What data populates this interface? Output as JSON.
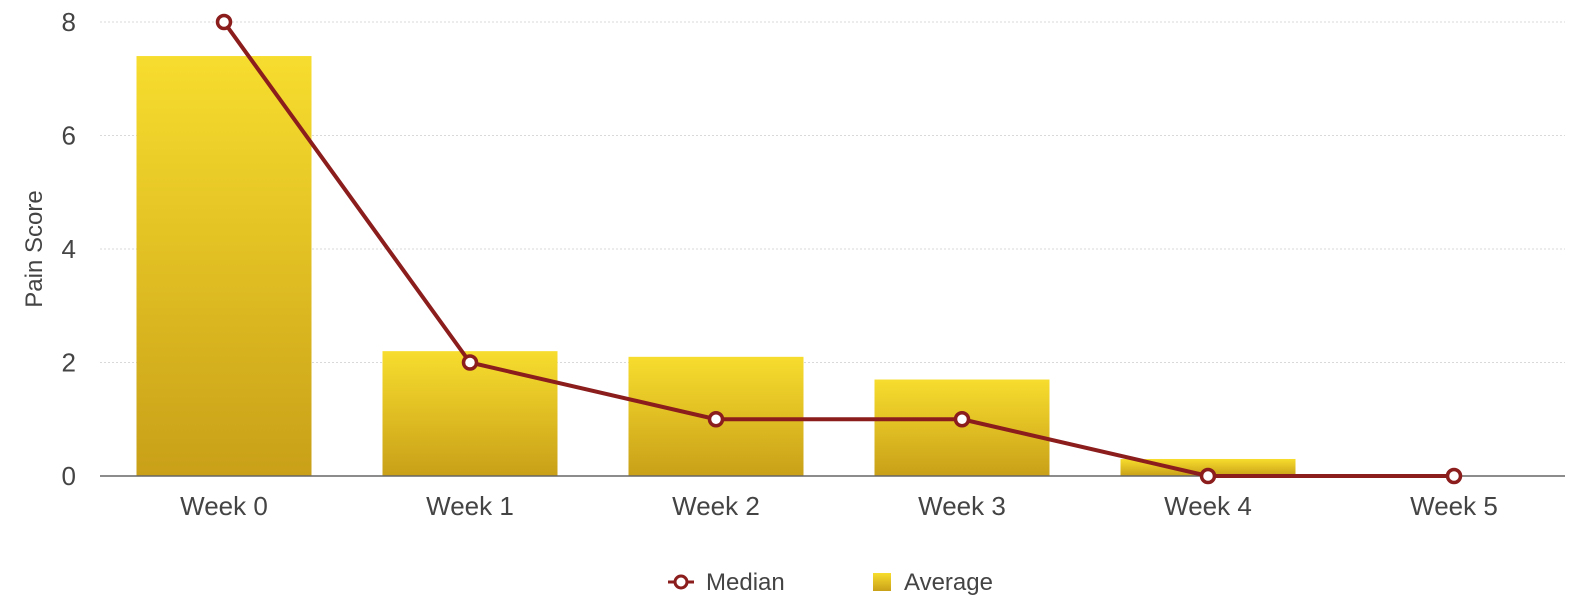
{
  "chart_data": {
    "type": "bar",
    "categories": [
      "Week 0",
      "Week 1",
      "Week 2",
      "Week 3",
      "Week 4",
      "Week 5"
    ],
    "ylabel": "Pain Score",
    "xlabel": "",
    "ylim": [
      0,
      8
    ],
    "yticks": [
      0,
      2,
      4,
      6,
      8
    ],
    "grid": true,
    "legend_position": "bottom-center",
    "series": [
      {
        "name": "Average",
        "kind": "bar",
        "color": "#e3b81f",
        "values": [
          7.4,
          2.2,
          2.1,
          1.7,
          0.3,
          0
        ]
      },
      {
        "name": "Median",
        "kind": "line",
        "color": "#8b1d1d",
        "values": [
          8,
          2,
          1,
          1,
          0,
          0
        ]
      }
    ]
  }
}
